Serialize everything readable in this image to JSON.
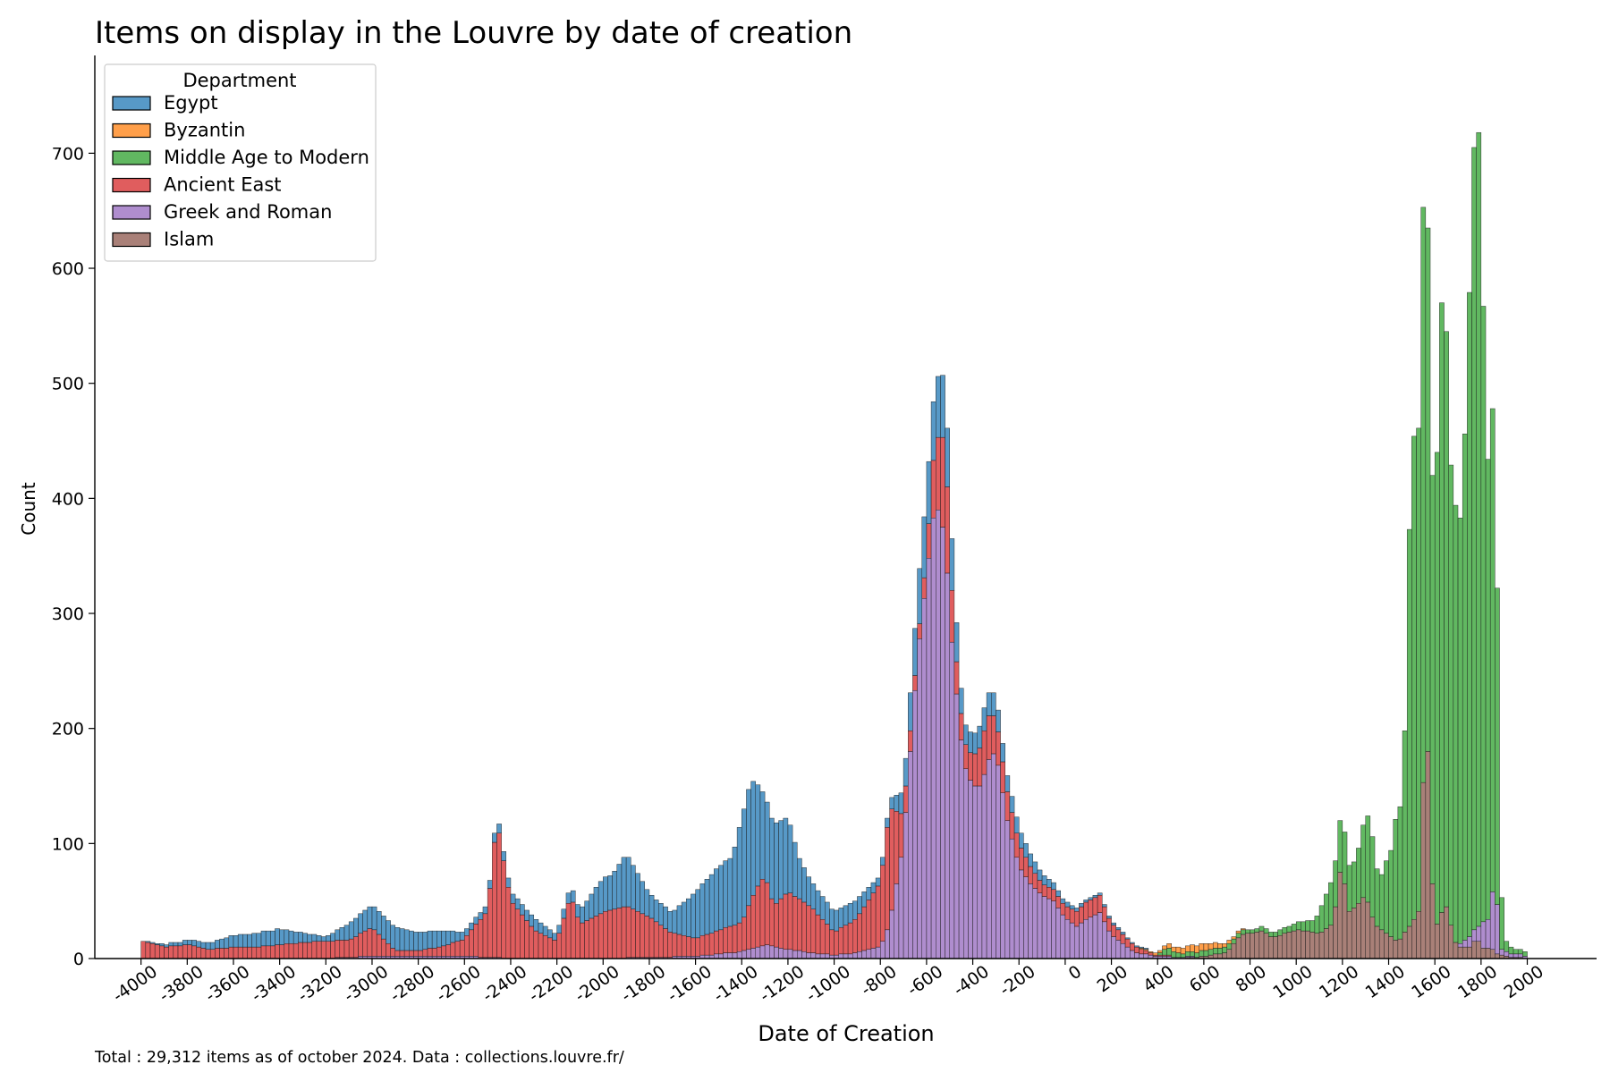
{
  "chart_data": {
    "type": "bar",
    "stacked": true,
    "title": "Items on display in the Louvre by date of creation",
    "xlabel": "Date of Creation",
    "ylabel": "Count",
    "footer": "Total : 29,312 items as of october 2024. Data : collections.louvre.fr/",
    "xlim": [
      -4200,
      2300
    ],
    "ylim": [
      0,
      785
    ],
    "x_ticks": [
      -4000,
      -3800,
      -3600,
      -3400,
      -3200,
      -3000,
      -2800,
      -2600,
      -2400,
      -2200,
      -2000,
      -1800,
      -1600,
      -1400,
      -1200,
      -1000,
      -800,
      -600,
      -400,
      -200,
      0,
      200,
      400,
      600,
      800,
      1000,
      1200,
      1400,
      1600,
      1800,
      2000
    ],
    "x_tick_labels": [
      "-4000",
      "-3800",
      "-3600",
      "-3400",
      "-3200",
      "-3000",
      "-2800",
      "-2600",
      "-2400",
      "-2200",
      "-2000",
      "-1800",
      "-1600",
      "-1400",
      "-1200",
      "-1000",
      "-800",
      "-600",
      "-400",
      "-200",
      "0",
      "200",
      "400",
      "600",
      "800",
      "1000",
      "1200",
      "1400",
      "1600",
      "1800",
      "2000"
    ],
    "y_ticks": [
      0,
      100,
      200,
      300,
      400,
      500,
      600,
      700
    ],
    "y_tick_labels": [
      "0",
      "100",
      "200",
      "300",
      "400",
      "500",
      "600",
      "700"
    ],
    "grid": false,
    "legend": {
      "title": "Department",
      "placement": "top-left"
    },
    "bin_width": 20,
    "stack_order_bottom_to_top": [
      "Islam",
      "Greek and Roman",
      "Ancient East",
      "Middle Age to Modern",
      "Byzantin",
      "Egypt"
    ],
    "series": [
      {
        "name": "Egypt",
        "color": "#1f77b4",
        "points": [
          [
            -4000,
            0
          ],
          [
            -3900,
            2
          ],
          [
            -3800,
            4
          ],
          [
            -3700,
            6
          ],
          [
            -3600,
            10
          ],
          [
            -3500,
            12
          ],
          [
            -3400,
            14
          ],
          [
            -3300,
            8
          ],
          [
            -3200,
            4
          ],
          [
            -3100,
            14
          ],
          [
            -3000,
            20
          ],
          [
            -2900,
            20
          ],
          [
            -2800,
            16
          ],
          [
            -2700,
            14
          ],
          [
            -2600,
            6
          ],
          [
            -2500,
            6
          ],
          [
            -2480,
            8
          ],
          [
            -2400,
            8
          ],
          [
            -2300,
            10
          ],
          [
            -2200,
            6
          ],
          [
            -2100,
            12
          ],
          [
            -2000,
            30
          ],
          [
            -1960,
            30
          ],
          [
            -1900,
            45
          ],
          [
            -1800,
            20
          ],
          [
            -1700,
            18
          ],
          [
            -1600,
            40
          ],
          [
            -1500,
            55
          ],
          [
            -1440,
            60
          ],
          [
            -1400,
            90
          ],
          [
            -1360,
            105
          ],
          [
            -1300,
            70
          ],
          [
            -1250,
            70
          ],
          [
            -1200,
            65
          ],
          [
            -1150,
            35
          ],
          [
            -1100,
            22
          ],
          [
            -1000,
            18
          ],
          [
            -900,
            16
          ],
          [
            -800,
            6
          ],
          [
            -760,
            8
          ],
          [
            -700,
            20
          ],
          [
            -640,
            45
          ],
          [
            -600,
            55
          ],
          [
            -560,
            50
          ],
          [
            -540,
            55
          ],
          [
            -500,
            50
          ],
          [
            -480,
            40
          ],
          [
            -440,
            16
          ],
          [
            -400,
            18
          ],
          [
            -340,
            20
          ],
          [
            -300,
            20
          ],
          [
            -250,
            14
          ],
          [
            -200,
            14
          ],
          [
            -100,
            8
          ],
          [
            0,
            4
          ],
          [
            100,
            2
          ],
          [
            200,
            2
          ],
          [
            300,
            1
          ],
          [
            400,
            0
          ],
          [
            2000,
            0
          ]
        ]
      },
      {
        "name": "Byzantin",
        "color": "#ff7f0e",
        "points": [
          [
            -4000,
            0
          ],
          [
            300,
            0
          ],
          [
            400,
            2
          ],
          [
            500,
            5
          ],
          [
            600,
            6
          ],
          [
            700,
            3
          ],
          [
            800,
            0
          ],
          [
            2000,
            0
          ]
        ]
      },
      {
        "name": "Middle Age to Modern",
        "color": "#2ca02c",
        "points": [
          [
            -4000,
            0
          ],
          [
            400,
            0
          ],
          [
            440,
            6
          ],
          [
            500,
            3
          ],
          [
            600,
            5
          ],
          [
            700,
            5
          ],
          [
            800,
            3
          ],
          [
            900,
            4
          ],
          [
            1000,
            6
          ],
          [
            1080,
            10
          ],
          [
            1100,
            20
          ],
          [
            1160,
            40
          ],
          [
            1180,
            40
          ],
          [
            1200,
            50
          ],
          [
            1220,
            40
          ],
          [
            1260,
            40
          ],
          [
            1300,
            70
          ],
          [
            1320,
            80
          ],
          [
            1360,
            40
          ],
          [
            1400,
            70
          ],
          [
            1420,
            80
          ],
          [
            1440,
            130
          ],
          [
            1460,
            100
          ],
          [
            1480,
            250
          ],
          [
            1500,
            440
          ],
          [
            1520,
            400
          ],
          [
            1540,
            440
          ],
          [
            1560,
            560
          ],
          [
            1580,
            350
          ],
          [
            1600,
            360
          ],
          [
            1620,
            460
          ],
          [
            1640,
            600
          ],
          [
            1660,
            400
          ],
          [
            1680,
            400
          ],
          [
            1700,
            360
          ],
          [
            1720,
            380
          ],
          [
            1740,
            500
          ],
          [
            1760,
            620
          ],
          [
            1780,
            740
          ],
          [
            1800,
            640
          ],
          [
            1820,
            430
          ],
          [
            1840,
            370
          ],
          [
            1860,
            470
          ],
          [
            1880,
            80
          ],
          [
            1900,
            10
          ],
          [
            1940,
            4
          ],
          [
            2000,
            4
          ]
        ]
      },
      {
        "name": "Ancient East",
        "color": "#d62728",
        "points": [
          [
            -4000,
            15
          ],
          [
            -3900,
            10
          ],
          [
            -3800,
            12
          ],
          [
            -3700,
            8
          ],
          [
            -3600,
            10
          ],
          [
            -3500,
            10
          ],
          [
            -3400,
            12
          ],
          [
            -3300,
            14
          ],
          [
            -3200,
            15
          ],
          [
            -3100,
            15
          ],
          [
            -3000,
            25
          ],
          [
            -2900,
            5
          ],
          [
            -2800,
            5
          ],
          [
            -2700,
            8
          ],
          [
            -2600,
            15
          ],
          [
            -2500,
            40
          ],
          [
            -2460,
            120
          ],
          [
            -2400,
            50
          ],
          [
            -2300,
            25
          ],
          [
            -2200,
            15
          ],
          [
            -2140,
            55
          ],
          [
            -2100,
            30
          ],
          [
            -2000,
            40
          ],
          [
            -1900,
            45
          ],
          [
            -1800,
            35
          ],
          [
            -1700,
            20
          ],
          [
            -1600,
            15
          ],
          [
            -1500,
            20
          ],
          [
            -1400,
            25
          ],
          [
            -1340,
            50
          ],
          [
            -1300,
            60
          ],
          [
            -1260,
            35
          ],
          [
            -1200,
            50
          ],
          [
            -1100,
            40
          ],
          [
            -1000,
            20
          ],
          [
            -900,
            30
          ],
          [
            -800,
            55
          ],
          [
            -760,
            100
          ],
          [
            -700,
            25
          ],
          [
            -640,
            10
          ],
          [
            -600,
            20
          ],
          [
            -560,
            60
          ],
          [
            -540,
            65
          ],
          [
            -520,
            90
          ],
          [
            -500,
            60
          ],
          [
            -480,
            30
          ],
          [
            -440,
            20
          ],
          [
            -400,
            25
          ],
          [
            -340,
            40
          ],
          [
            -300,
            30
          ],
          [
            -250,
            25
          ],
          [
            -200,
            20
          ],
          [
            -100,
            10
          ],
          [
            0,
            10
          ],
          [
            100,
            15
          ],
          [
            150,
            15
          ],
          [
            200,
            10
          ],
          [
            300,
            5
          ],
          [
            400,
            1
          ],
          [
            500,
            0
          ],
          [
            2000,
            0
          ]
        ]
      },
      {
        "name": "Greek and Roman",
        "color": "#9467bd",
        "points": [
          [
            -4000,
            0
          ],
          [
            -3200,
            0
          ],
          [
            -3000,
            2
          ],
          [
            -2800,
            2
          ],
          [
            -2600,
            2
          ],
          [
            -2400,
            0
          ],
          [
            -2000,
            0
          ],
          [
            -1600,
            2
          ],
          [
            -1400,
            6
          ],
          [
            -1300,
            12
          ],
          [
            -1200,
            8
          ],
          [
            -1100,
            5
          ],
          [
            -1000,
            3
          ],
          [
            -900,
            5
          ],
          [
            -800,
            10
          ],
          [
            -760,
            30
          ],
          [
            -700,
            100
          ],
          [
            -640,
            260
          ],
          [
            -600,
            330
          ],
          [
            -560,
            400
          ],
          [
            -540,
            380
          ],
          [
            -520,
            370
          ],
          [
            -500,
            300
          ],
          [
            -480,
            250
          ],
          [
            -440,
            170
          ],
          [
            -400,
            150
          ],
          [
            -360,
            150
          ],
          [
            -340,
            170
          ],
          [
            -300,
            180
          ],
          [
            -250,
            120
          ],
          [
            -200,
            80
          ],
          [
            -150,
            65
          ],
          [
            -100,
            55
          ],
          [
            -50,
            50
          ],
          [
            0,
            35
          ],
          [
            50,
            28
          ],
          [
            100,
            35
          ],
          [
            150,
            40
          ],
          [
            200,
            20
          ],
          [
            300,
            5
          ],
          [
            400,
            2
          ],
          [
            500,
            1
          ],
          [
            600,
            0
          ],
          [
            1700,
            0
          ],
          [
            1720,
            5
          ],
          [
            1760,
            10
          ],
          [
            1780,
            10
          ],
          [
            1800,
            15
          ],
          [
            1820,
            30
          ],
          [
            1840,
            20
          ],
          [
            1860,
            80
          ],
          [
            1880,
            5
          ],
          [
            1900,
            4
          ],
          [
            1940,
            3
          ],
          [
            2000,
            2
          ]
        ]
      },
      {
        "name": "Islam",
        "color": "#8c564b",
        "points": [
          [
            -4000,
            0
          ],
          [
            500,
            0
          ],
          [
            600,
            2
          ],
          [
            700,
            5
          ],
          [
            760,
            20
          ],
          [
            800,
            22
          ],
          [
            850,
            24
          ],
          [
            900,
            18
          ],
          [
            1000,
            25
          ],
          [
            1100,
            22
          ],
          [
            1160,
            30
          ],
          [
            1200,
            90
          ],
          [
            1220,
            40
          ],
          [
            1260,
            45
          ],
          [
            1300,
            55
          ],
          [
            1340,
            30
          ],
          [
            1400,
            20
          ],
          [
            1440,
            14
          ],
          [
            1460,
            20
          ],
          [
            1500,
            30
          ],
          [
            1540,
            45
          ],
          [
            1560,
            260
          ],
          [
            1580,
            100
          ],
          [
            1600,
            30
          ],
          [
            1620,
            30
          ],
          [
            1640,
            50
          ],
          [
            1660,
            40
          ],
          [
            1680,
            18
          ],
          [
            1700,
            10
          ],
          [
            1720,
            10
          ],
          [
            1760,
            10
          ],
          [
            1780,
            20
          ],
          [
            1800,
            10
          ],
          [
            1820,
            8
          ],
          [
            1840,
            10
          ],
          [
            1860,
            5
          ],
          [
            1880,
            3
          ],
          [
            1900,
            2
          ],
          [
            1940,
            1
          ],
          [
            2000,
            0
          ]
        ]
      }
    ]
  }
}
